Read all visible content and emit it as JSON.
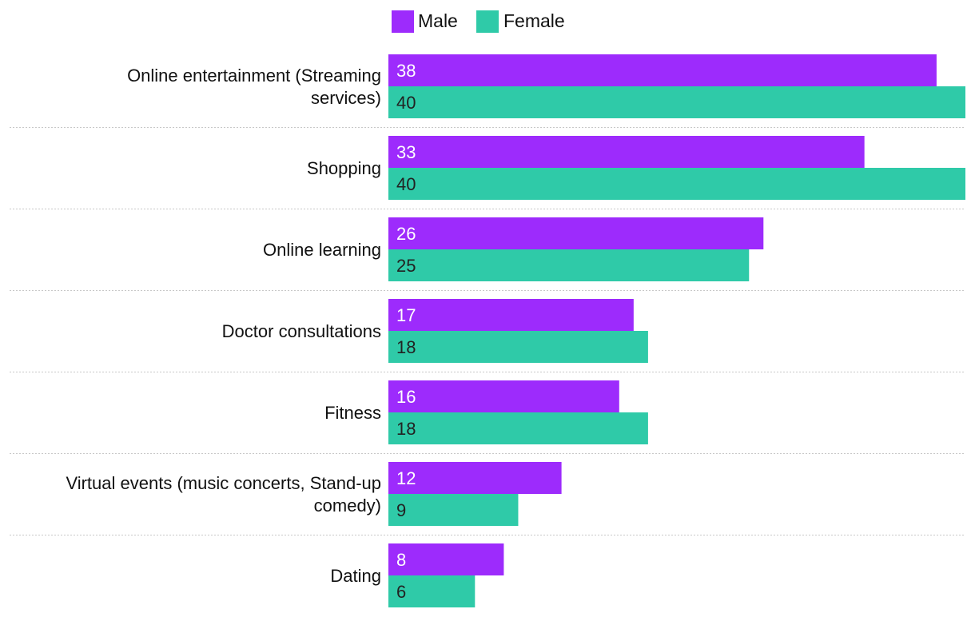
{
  "chart_data": {
    "type": "bar",
    "orientation": "horizontal",
    "title": "",
    "xlabel": "",
    "ylabel": "",
    "xlim": [
      0,
      40
    ],
    "grid": false,
    "legend_position": "top",
    "categories": [
      [
        "Online entertainment (Streaming",
        "services)"
      ],
      [
        "Shopping"
      ],
      [
        "Online learning"
      ],
      [
        "Doctor consultations"
      ],
      [
        "Fitness"
      ],
      [
        "Virtual events (music concerts, Stand-up",
        "comedy)"
      ],
      [
        "Dating"
      ]
    ],
    "series": [
      {
        "name": "Male",
        "color": "#9d2bfc",
        "label_color": "#ffffff",
        "values": [
          38,
          33,
          26,
          17,
          16,
          12,
          8
        ]
      },
      {
        "name": "Female",
        "color": "#2fcaa8",
        "label_color": "#222222",
        "values": [
          40,
          40,
          25,
          18,
          18,
          9,
          6
        ]
      }
    ]
  }
}
